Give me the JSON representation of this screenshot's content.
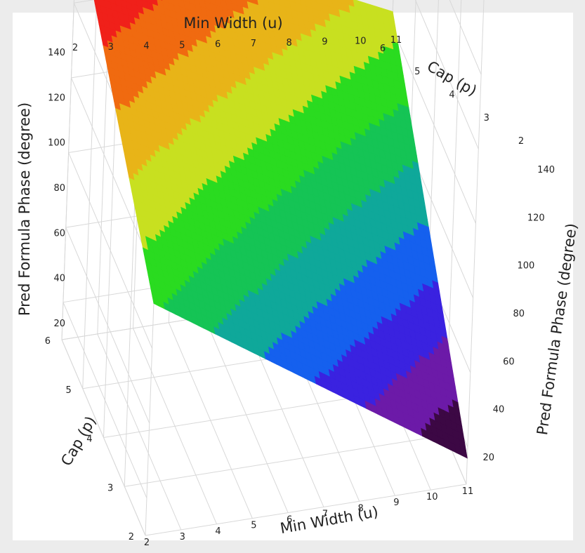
{
  "chart_data": {
    "type": "surface3d",
    "x_axis": {
      "label": "Min Width (u)",
      "range": [
        2,
        11
      ],
      "ticks": [
        "2",
        "3",
        "4",
        "5",
        "6",
        "7",
        "8",
        "9",
        "10",
        "11"
      ]
    },
    "y_axis": {
      "label": "Cap (p)",
      "range": [
        2,
        6
      ],
      "ticks_front": [
        "2",
        "3",
        "4",
        "5",
        "6"
      ],
      "ticks_back": [
        "2",
        "3",
        "4",
        "5",
        "6"
      ]
    },
    "z_axis": {
      "label": "Pred Formula Phase (degree)",
      "range": [
        10,
        140
      ],
      "ticks_left": [
        "20",
        "40",
        "60",
        "80",
        "100",
        "120",
        "140"
      ],
      "ticks_right": [
        "20",
        "40",
        "60",
        "80",
        "100",
        "120",
        "140"
      ]
    },
    "surface_corners": [
      {
        "x": 2,
        "y": 6,
        "z": 124
      },
      {
        "x": 11,
        "y": 6,
        "z": 84
      },
      {
        "x": 2,
        "y": 2,
        "z": 72
      },
      {
        "x": 11,
        "y": 2,
        "z": 17
      }
    ],
    "colormap": [
      "#a30f12",
      "#f0201a",
      "#f06a10",
      "#e8b418",
      "#c8e020",
      "#2adb20",
      "#15c455",
      "#0fa89a",
      "#1560ee",
      "#3a22e0",
      "#6c1aa8",
      "#3c0844"
    ],
    "grid": true,
    "legend": "none"
  }
}
